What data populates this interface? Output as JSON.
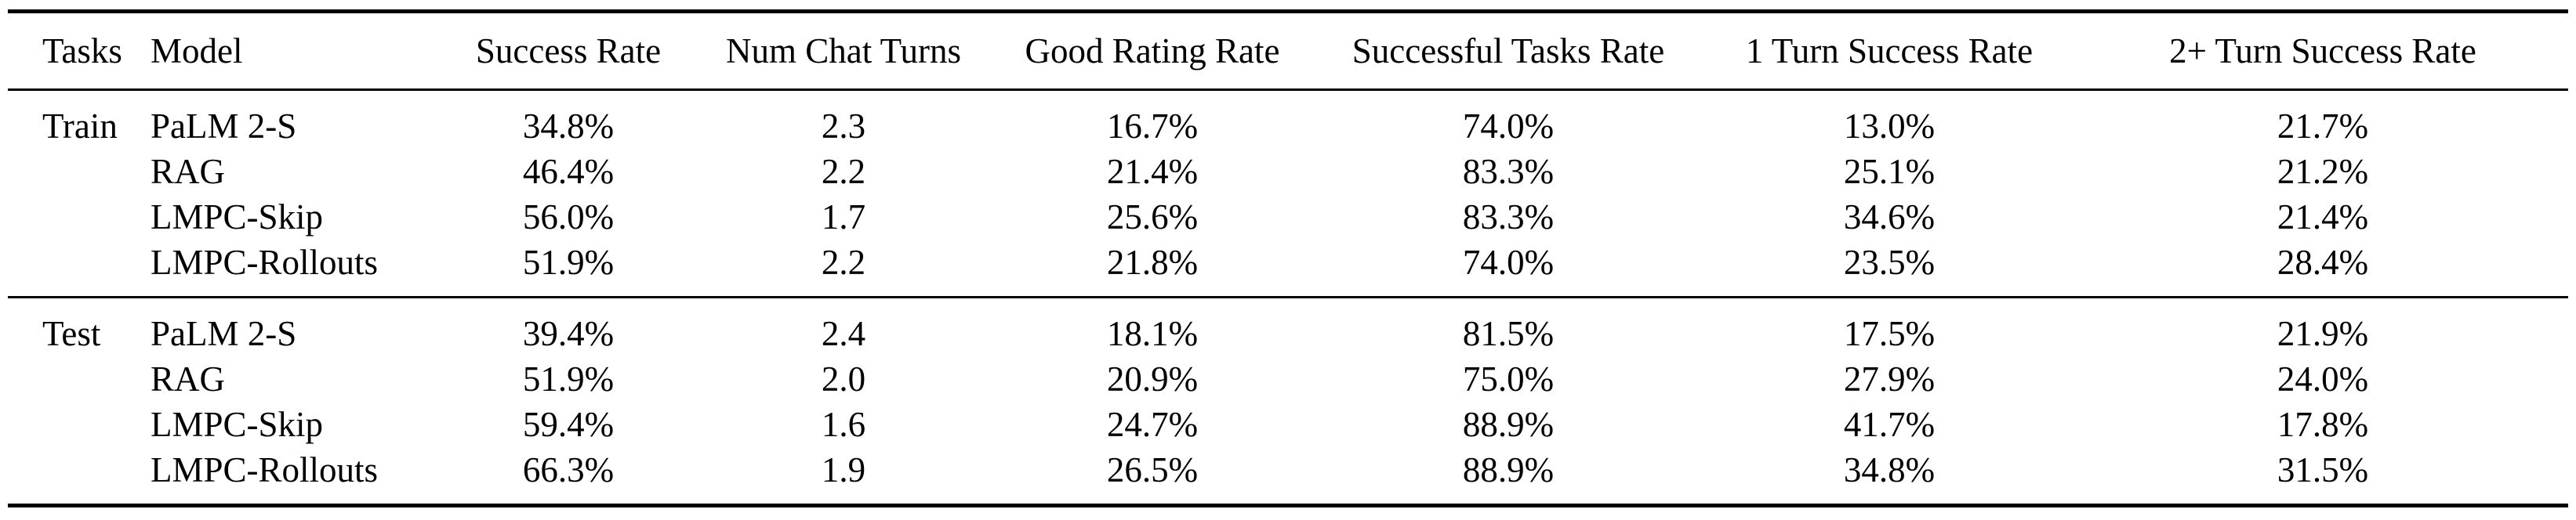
{
  "table": {
    "headers": [
      "Tasks",
      "Model",
      "Success Rate",
      "Num Chat Turns",
      "Good Rating Rate",
      "Successful Tasks Rate",
      "1 Turn Success Rate",
      "2+ Turn Success Rate"
    ],
    "groups": [
      {
        "name": "Train",
        "rows": [
          {
            "model": "PaLM 2-S",
            "cells": [
              {
                "v": "34.8%",
                "bold": false
              },
              {
                "v": "2.3",
                "bold": false
              },
              {
                "v": "16.7%",
                "bold": false
              },
              {
                "v": "74.0%",
                "bold": false
              },
              {
                "v": "13.0%",
                "bold": false
              },
              {
                "v": "21.7%",
                "bold": false
              }
            ]
          },
          {
            "model": "RAG",
            "cells": [
              {
                "v": "46.4%",
                "bold": false
              },
              {
                "v": "2.2",
                "bold": false
              },
              {
                "v": "21.4%",
                "bold": false
              },
              {
                "v": "83.3%",
                "bold": true
              },
              {
                "v": "25.1%",
                "bold": false
              },
              {
                "v": "21.2%",
                "bold": false
              }
            ]
          },
          {
            "model": "LMPC-Skip",
            "cells": [
              {
                "v": "56.0%",
                "bold": true
              },
              {
                "v": "1.7",
                "bold": true
              },
              {
                "v": "25.6%",
                "bold": true
              },
              {
                "v": "83.3%",
                "bold": true
              },
              {
                "v": "34.6%",
                "bold": true
              },
              {
                "v": "21.4%",
                "bold": false
              }
            ]
          },
          {
            "model": "LMPC-Rollouts",
            "cells": [
              {
                "v": "51.9%",
                "bold": false
              },
              {
                "v": "2.2",
                "bold": false
              },
              {
                "v": "21.8%",
                "bold": false
              },
              {
                "v": "74.0%",
                "bold": false
              },
              {
                "v": "23.5%",
                "bold": false
              },
              {
                "v": "28.4%",
                "bold": true
              }
            ]
          }
        ]
      },
      {
        "name": "Test",
        "rows": [
          {
            "model": "PaLM 2-S",
            "cells": [
              {
                "v": "39.4%",
                "bold": false
              },
              {
                "v": "2.4",
                "bold": false
              },
              {
                "v": "18.1%",
                "bold": false
              },
              {
                "v": "81.5%",
                "bold": false
              },
              {
                "v": "17.5%",
                "bold": false
              },
              {
                "v": "21.9%",
                "bold": false
              }
            ]
          },
          {
            "model": "RAG",
            "cells": [
              {
                "v": "51.9%",
                "bold": false
              },
              {
                "v": "2.0",
                "bold": false
              },
              {
                "v": "20.9%",
                "bold": false
              },
              {
                "v": "75.0%",
                "bold": false
              },
              {
                "v": "27.9%",
                "bold": false
              },
              {
                "v": "24.0%",
                "bold": false
              }
            ]
          },
          {
            "model": "LMPC-Skip",
            "cells": [
              {
                "v": "59.4%",
                "bold": false
              },
              {
                "v": "1.6",
                "bold": true
              },
              {
                "v": "24.7%",
                "bold": false
              },
              {
                "v": "88.9%",
                "bold": true
              },
              {
                "v": "41.7%",
                "bold": true
              },
              {
                "v": "17.8%",
                "bold": false
              }
            ]
          },
          {
            "model": "LMPC-Rollouts",
            "cells": [
              {
                "v": "66.3%",
                "bold": true
              },
              {
                "v": "1.9",
                "bold": false
              },
              {
                "v": "26.5%",
                "bold": true
              },
              {
                "v": "88.9%",
                "bold": true
              },
              {
                "v": "34.8%",
                "bold": false
              },
              {
                "v": "31.5%",
                "bold": true
              }
            ]
          }
        ]
      }
    ]
  }
}
